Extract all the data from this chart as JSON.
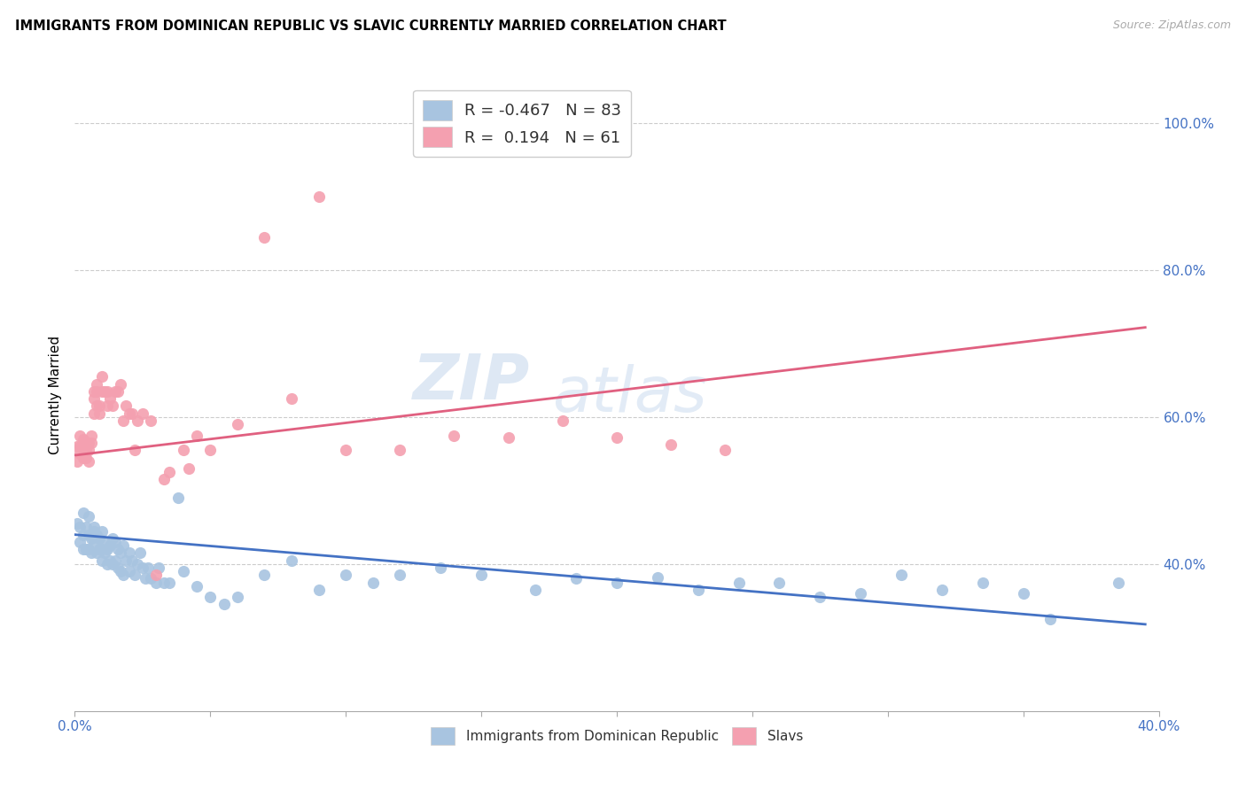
{
  "title": "IMMIGRANTS FROM DOMINICAN REPUBLIC VS SLAVIC CURRENTLY MARRIED CORRELATION CHART",
  "source": "Source: ZipAtlas.com",
  "ylabel": "Currently Married",
  "xlim": [
    0.0,
    0.4
  ],
  "ylim": [
    0.2,
    1.06
  ],
  "blue_color": "#a8c4e0",
  "pink_color": "#f4a0b0",
  "blue_line_color": "#4472c4",
  "pink_line_color": "#e06080",
  "legend_r_blue": "-0.467",
  "legend_n_blue": "83",
  "legend_r_pink": "0.194",
  "legend_n_pink": "61",
  "watermark_top": "ZIP",
  "watermark_bot": "atlas",
  "blue_scatter_x": [
    0.001,
    0.002,
    0.002,
    0.003,
    0.003,
    0.003,
    0.004,
    0.004,
    0.005,
    0.005,
    0.005,
    0.006,
    0.006,
    0.007,
    0.007,
    0.007,
    0.008,
    0.008,
    0.009,
    0.009,
    0.01,
    0.01,
    0.01,
    0.011,
    0.011,
    0.012,
    0.012,
    0.013,
    0.013,
    0.014,
    0.014,
    0.015,
    0.015,
    0.016,
    0.016,
    0.017,
    0.017,
    0.018,
    0.018,
    0.019,
    0.02,
    0.02,
    0.021,
    0.022,
    0.023,
    0.024,
    0.025,
    0.026,
    0.027,
    0.028,
    0.03,
    0.031,
    0.033,
    0.035,
    0.038,
    0.04,
    0.045,
    0.05,
    0.055,
    0.06,
    0.07,
    0.08,
    0.09,
    0.1,
    0.11,
    0.12,
    0.135,
    0.15,
    0.17,
    0.185,
    0.2,
    0.215,
    0.23,
    0.245,
    0.26,
    0.275,
    0.29,
    0.305,
    0.32,
    0.335,
    0.35,
    0.36,
    0.385
  ],
  "blue_scatter_y": [
    0.455,
    0.45,
    0.43,
    0.47,
    0.44,
    0.42,
    0.45,
    0.42,
    0.465,
    0.44,
    0.42,
    0.435,
    0.415,
    0.45,
    0.43,
    0.445,
    0.44,
    0.415,
    0.435,
    0.42,
    0.445,
    0.42,
    0.405,
    0.43,
    0.415,
    0.42,
    0.4,
    0.425,
    0.405,
    0.435,
    0.4,
    0.43,
    0.405,
    0.42,
    0.395,
    0.415,
    0.39,
    0.425,
    0.385,
    0.405,
    0.415,
    0.39,
    0.405,
    0.385,
    0.4,
    0.415,
    0.395,
    0.38,
    0.395,
    0.38,
    0.375,
    0.395,
    0.375,
    0.375,
    0.49,
    0.39,
    0.37,
    0.355,
    0.345,
    0.355,
    0.385,
    0.405,
    0.365,
    0.385,
    0.375,
    0.385,
    0.395,
    0.385,
    0.365,
    0.38,
    0.375,
    0.382,
    0.365,
    0.375,
    0.375,
    0.355,
    0.36,
    0.385,
    0.365,
    0.375,
    0.36,
    0.325,
    0.375
  ],
  "pink_scatter_x": [
    0.001,
    0.001,
    0.002,
    0.002,
    0.002,
    0.003,
    0.003,
    0.003,
    0.004,
    0.004,
    0.004,
    0.005,
    0.005,
    0.005,
    0.006,
    0.006,
    0.007,
    0.007,
    0.007,
    0.008,
    0.008,
    0.008,
    0.009,
    0.009,
    0.01,
    0.01,
    0.011,
    0.012,
    0.012,
    0.013,
    0.014,
    0.015,
    0.016,
    0.017,
    0.018,
    0.019,
    0.02,
    0.021,
    0.022,
    0.023,
    0.025,
    0.028,
    0.03,
    0.033,
    0.035,
    0.04,
    0.042,
    0.045,
    0.05,
    0.06,
    0.07,
    0.08,
    0.09,
    0.1,
    0.12,
    0.14,
    0.16,
    0.18,
    0.2,
    0.22,
    0.24
  ],
  "pink_scatter_y": [
    0.54,
    0.56,
    0.575,
    0.55,
    0.56,
    0.555,
    0.57,
    0.545,
    0.545,
    0.565,
    0.555,
    0.555,
    0.54,
    0.565,
    0.565,
    0.575,
    0.605,
    0.625,
    0.635,
    0.615,
    0.635,
    0.645,
    0.605,
    0.615,
    0.635,
    0.655,
    0.635,
    0.615,
    0.635,
    0.625,
    0.615,
    0.635,
    0.635,
    0.645,
    0.595,
    0.615,
    0.605,
    0.605,
    0.555,
    0.595,
    0.605,
    0.595,
    0.385,
    0.515,
    0.525,
    0.555,
    0.53,
    0.575,
    0.555,
    0.59,
    0.845,
    0.625,
    0.9,
    0.555,
    0.555,
    0.575,
    0.572,
    0.595,
    0.572,
    0.562,
    0.555
  ],
  "blue_line_x": [
    0.0,
    0.395
  ],
  "blue_line_y": [
    0.44,
    0.318
  ],
  "pink_line_x": [
    0.0,
    0.395
  ],
  "pink_line_y": [
    0.548,
    0.722
  ],
  "x_ticks": [
    0.0,
    0.05,
    0.1,
    0.15,
    0.2,
    0.25,
    0.3,
    0.35,
    0.4
  ],
  "y_ticks": [
    0.4,
    0.6,
    0.8,
    1.0
  ]
}
